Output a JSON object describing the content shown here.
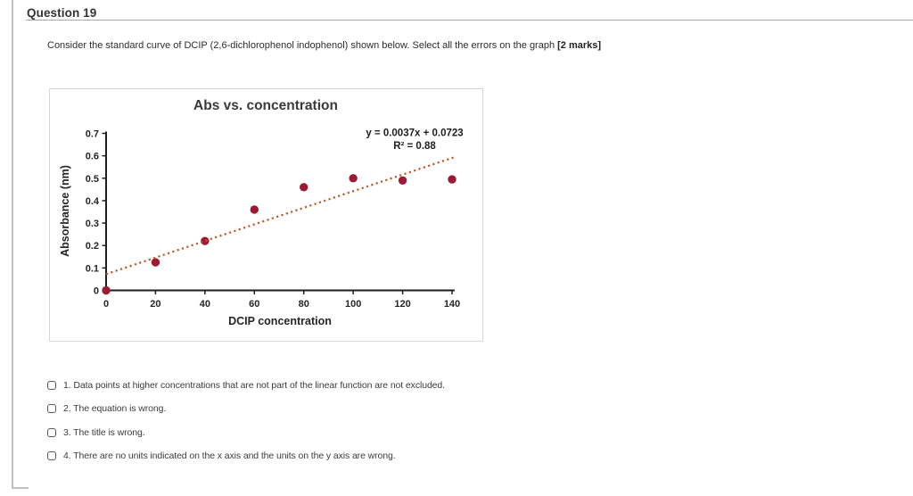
{
  "question": {
    "header": "Question 19",
    "text": "Consider the standard curve of DCIP (2,6-dichlorophenol indophenol) shown below. Select all the errors on the graph ",
    "marks": "[2 marks]"
  },
  "chart_data": {
    "type": "scatter",
    "title": "Abs vs. concentration",
    "xlabel": "DCIP concentration",
    "ylabel": "Absorbance (nm)",
    "xlim": [
      0,
      140
    ],
    "ylim": [
      0,
      0.7
    ],
    "x_ticks": [
      0,
      20,
      40,
      60,
      80,
      100,
      120,
      140
    ],
    "y_ticks": [
      0,
      0.1,
      0.2,
      0.3,
      0.4,
      0.5,
      0.6,
      0.7
    ],
    "points": {
      "x": [
        0,
        20,
        40,
        60,
        80,
        100,
        120,
        140
      ],
      "y": [
        0,
        0.125,
        0.22,
        0.36,
        0.46,
        0.5,
        0.49,
        0.495
      ]
    },
    "trendline": {
      "type": "linear-dotted",
      "slope": 0.0037,
      "intercept": 0.0723,
      "x_start": 0,
      "x_end": 141,
      "color": "#bd5b26"
    },
    "equation_line1": "y = 0.0037x + 0.0723",
    "equation_line2": "R² = 0.88",
    "point_color": "#9c1b33",
    "axis_color": "#1f1f1f",
    "legend": "none",
    "grid": "off"
  },
  "options": [
    {
      "label": "1. Data points at higher concentrations that are not part of the linear function are not excluded.",
      "checked": false
    },
    {
      "label": "2. The equation is wrong.",
      "checked": false
    },
    {
      "label": "3. The title is wrong.",
      "checked": false
    },
    {
      "label": "4. There are no units indicated on the x axis and the units on the y axis are wrong.",
      "checked": false
    }
  ]
}
